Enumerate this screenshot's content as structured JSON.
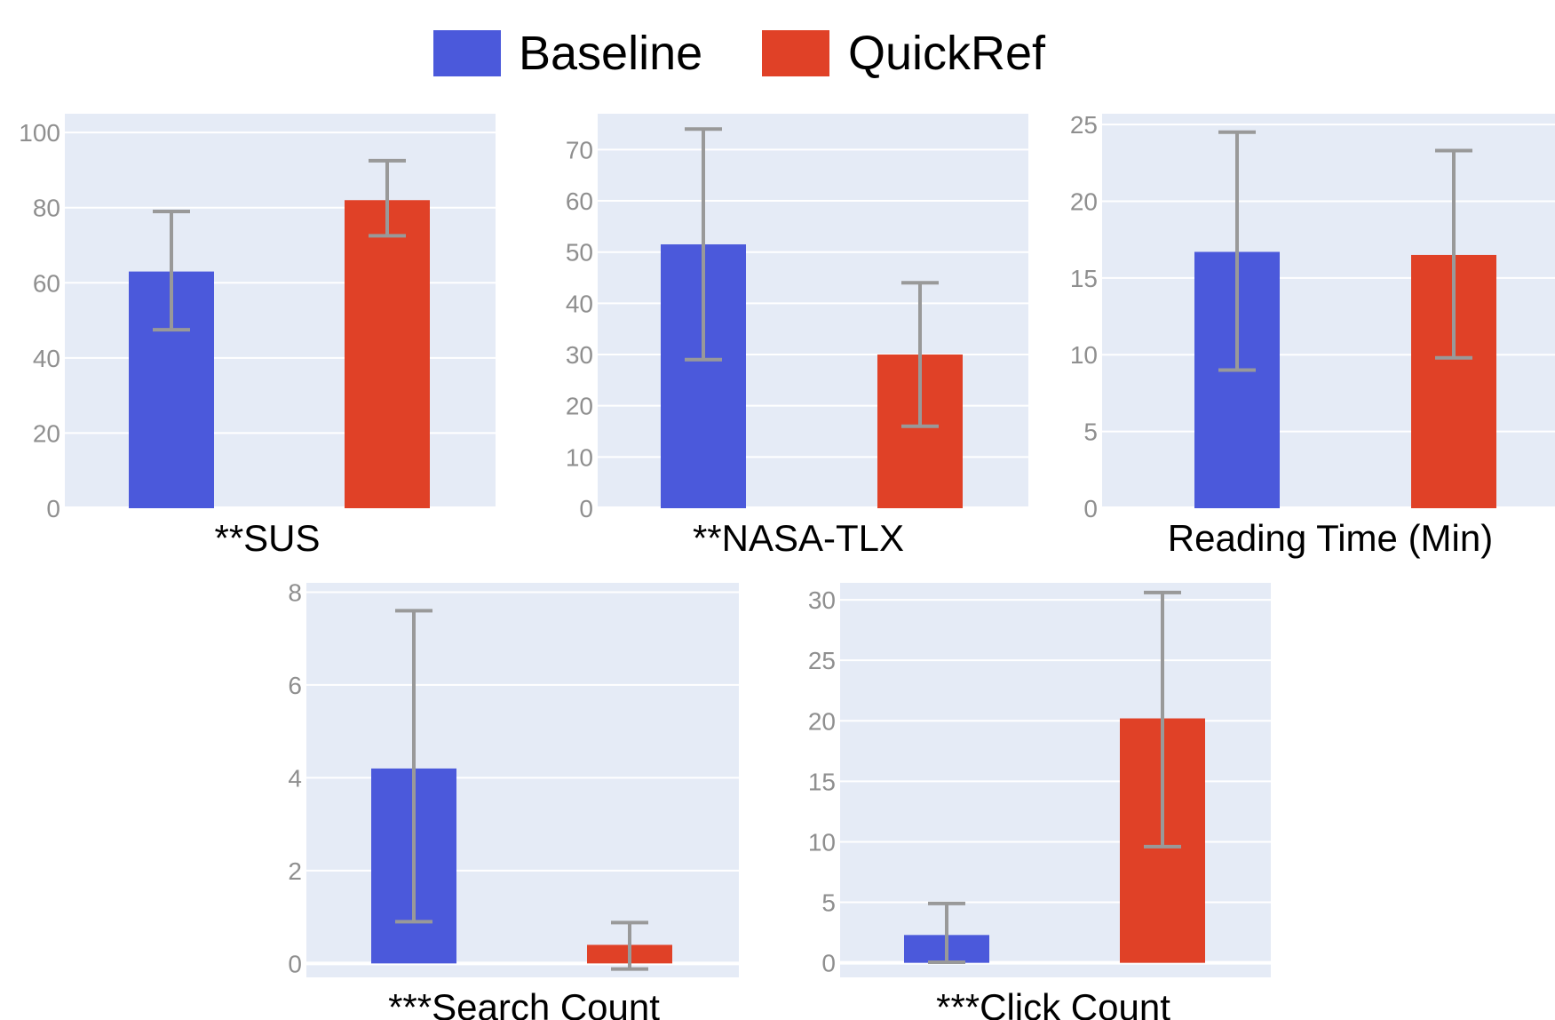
{
  "legend": {
    "items": [
      {
        "label": "Baseline",
        "color": "#4b59db"
      },
      {
        "label": "QuickRef",
        "color": "#e04127"
      }
    ]
  },
  "colors": {
    "plot_background": "#e5ebf6",
    "gridline": "#ffffff",
    "error_bar": "#999999",
    "tick_text": "#8f8f8f"
  },
  "chart_data": [
    {
      "type": "bar",
      "title": "**SUS",
      "categories": [
        "Baseline",
        "QuickRef"
      ],
      "values": [
        63,
        82
      ],
      "error_low": [
        47.5,
        72.5
      ],
      "error_high": [
        79,
        92.5
      ],
      "yticks": [
        0,
        20,
        40,
        60,
        80,
        100
      ],
      "ylim": [
        0,
        105
      ],
      "grid": true
    },
    {
      "type": "bar",
      "title": "**NASA-TLX",
      "categories": [
        "Baseline",
        "QuickRef"
      ],
      "values": [
        51.5,
        30
      ],
      "error_low": [
        29,
        16
      ],
      "error_high": [
        74,
        44
      ],
      "yticks": [
        0,
        10,
        20,
        30,
        40,
        50,
        60,
        70
      ],
      "ylim": [
        0,
        77
      ],
      "grid": true
    },
    {
      "type": "bar",
      "title": "Reading Time (Min)",
      "categories": [
        "Baseline",
        "QuickRef"
      ],
      "values": [
        16.7,
        16.5
      ],
      "error_low": [
        9,
        9.8
      ],
      "error_high": [
        24.5,
        23.3
      ],
      "yticks": [
        0,
        5,
        10,
        15,
        20,
        25
      ],
      "ylim": [
        0,
        25.7
      ],
      "grid": true
    },
    {
      "type": "bar",
      "title": "***Search Count",
      "categories": [
        "Baseline",
        "QuickRef"
      ],
      "values": [
        4.2,
        0.4
      ],
      "error_low": [
        0.9,
        -0.12
      ],
      "error_high": [
        7.6,
        0.88
      ],
      "yticks": [
        0,
        2,
        4,
        6,
        8
      ],
      "ylim": [
        -0.3,
        8.2
      ],
      "grid": true
    },
    {
      "type": "bar",
      "title": "***Click Count",
      "categories": [
        "Baseline",
        "QuickRef"
      ],
      "values": [
        2.3,
        20.2
      ],
      "error_low": [
        0.05,
        9.6
      ],
      "error_high": [
        4.9,
        30.6
      ],
      "yticks": [
        0,
        5,
        10,
        15,
        20,
        25,
        30
      ],
      "ylim": [
        -1.2,
        31.4
      ],
      "grid": true
    }
  ]
}
